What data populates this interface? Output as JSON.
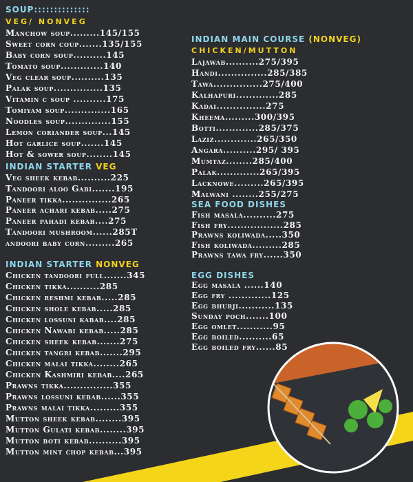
{
  "menu": {
    "sections": [
      {
        "title": "SOUP::::::::::::::",
        "subtitle": "VEG/ NONVEG",
        "items": [
          "Manchow soup.........145/155",
          "Sweet corn coup.......135/155",
          "Baby corn soup..........145",
          "Tomato soup.............140",
          "Veg clear soup..........135",
          "Palak soup...............135",
          "Vitamin c soup ..........175",
          "Tomiyam soup..............165",
          "Noodles soup..............155",
          "Lemon coriander soup...145",
          "Hot garlice soup.......145",
          "Hot & sower soup........145"
        ]
      },
      {
        "title": "INDIAN STARTER",
        "title_accent": "VEG",
        "items": [
          "Veg sheek kebab..........225",
          "Tandoori aloo Gabi.......195",
          "Paneer tikka...............265",
          "Paneer achari kebab.....275",
          "Paneer pahadi kebab....275",
          "Tandoori mushroom......285T",
          "andoori baby corn.........265"
        ]
      },
      {
        "title": "INDIAN STARTER",
        "title_accent": "NONVEG",
        "items": [
          "Chicken tandoori full.......345",
          "Chicken tikka..........285",
          "Chicken reshmi kebab.....285",
          "Chicken shole kebab.....285",
          "Chicken lossuni kabab....285",
          "Chicken Nawabi kebab.....285",
          "Chicken sheek kebab.......275",
          "Chicken tangri kebab.......295",
          "Chicken malai tikka........265",
          "Chicken Kashmiri kebab....265",
          "Prawns tikka...............355",
          "Prawns lossuni kebab......355",
          "Prawns malai tikka.........355",
          "Mutton sheek kebab........395",
          "Mutton Gulati kebab........395",
          "Mutton boti kebab..........395",
          "Mutton mint chop kebab...395"
        ]
      },
      {
        "title": "INDIAN MAIN COURSE",
        "title_accent": "(NONVEG)",
        "subtitle": "CHICKEN/MUTTON",
        "items": [
          "Lajawab..........275/395",
          "Handi...............285/385",
          "Tawa...............275/400",
          "Kalhapuri.............285",
          "Kadai...............275",
          "Kheema.........300/395",
          "Botti.............285/375",
          "Laziz.............265/350",
          "Angara..........295/ 395",
          "Mumtaz........285/400",
          "Palak.............265/395",
          "Lacknowe.........265/395",
          "Malwani ........255/275"
        ]
      },
      {
        "title": "SEA FOOD DISHES",
        "items": [
          "Fish masala..........275",
          "Fish fry.................285",
          "Prawns koliwada.....350",
          "Fish koliwada.........285",
          "Prawns tawa fry......350"
        ]
      },
      {
        "title": "EGG DISHES",
        "items": [
          "Egg masala ......140",
          "Egg fry .............125",
          "Egg bhurji...........135",
          "Sunday poch.......100",
          "Egg omlet...........95",
          "Egg boiled..........65",
          "Egg boiled fry......85"
        ]
      }
    ]
  }
}
